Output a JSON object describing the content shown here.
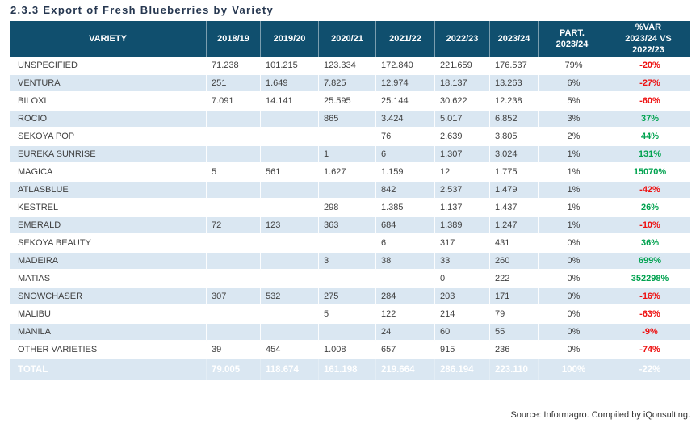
{
  "title": "2.3.3 Export of Fresh Blueberries by Variety",
  "source": "Source: Informagro. Compiled by iQonsulting.",
  "colors": {
    "header_bg": "#104f6e",
    "row_alt": "#dae7f2",
    "neg_red": "#ee1111",
    "pos_green": "#00a24f",
    "body_text": "#404040",
    "title_color": "#263750"
  },
  "chart_data": {
    "type": "table",
    "title": "Export of Fresh Blueberries by Variety",
    "columns": [
      "VARIETY",
      "2018/19",
      "2019/20",
      "2020/21",
      "2021/22",
      "2022/23",
      "2023/24",
      "PART.\n2023/24",
      "%VAR\n2023/24 VS\n2022/23"
    ],
    "rows": [
      [
        "UNSPECIFIED",
        "71.238",
        "101.215",
        "123.334",
        "172.840",
        "221.659",
        "176.537",
        "79%",
        "-20%"
      ],
      [
        "VENTURA",
        "251",
        "1.649",
        "7.825",
        "12.974",
        "18.137",
        "13.263",
        "6%",
        "-27%"
      ],
      [
        "BILOXI",
        "7.091",
        "14.141",
        "25.595",
        "25.144",
        "30.622",
        "12.238",
        "5%",
        "-60%"
      ],
      [
        "ROCIO",
        "",
        "",
        "865",
        "3.424",
        "5.017",
        "6.852",
        "3%",
        "37%"
      ],
      [
        "SEKOYA POP",
        "",
        "",
        "",
        "76",
        "2.639",
        "3.805",
        "2%",
        "44%"
      ],
      [
        "EUREKA SUNRISE",
        "",
        "",
        "1",
        "6",
        "1.307",
        "3.024",
        "1%",
        "131%"
      ],
      [
        "MAGICA",
        "5",
        "561",
        "1.627",
        "1.159",
        "12",
        "1.775",
        "1%",
        "15070%"
      ],
      [
        "ATLASBLUE",
        "",
        "",
        "",
        "842",
        "2.537",
        "1.479",
        "1%",
        "-42%"
      ],
      [
        "KESTREL",
        "",
        "",
        "298",
        "1.385",
        "1.137",
        "1.437",
        "1%",
        "26%"
      ],
      [
        "EMERALD",
        "72",
        "123",
        "363",
        "684",
        "1.389",
        "1.247",
        "1%",
        "-10%"
      ],
      [
        "SEKOYA BEAUTY",
        "",
        "",
        "",
        "6",
        "317",
        "431",
        "0%",
        "36%"
      ],
      [
        "MADEIRA",
        "",
        "",
        "3",
        "38",
        "33",
        "260",
        "0%",
        "699%"
      ],
      [
        "MATIAS",
        "",
        "",
        "",
        "",
        "0",
        "222",
        "0%",
        "352298%"
      ],
      [
        "SNOWCHASER",
        "307",
        "532",
        "275",
        "284",
        "203",
        "171",
        "0%",
        "-16%"
      ],
      [
        "MALIBU",
        "",
        "",
        "5",
        "122",
        "214",
        "79",
        "0%",
        "-63%"
      ],
      [
        "MANILA",
        "",
        "",
        "",
        "24",
        "60",
        "55",
        "0%",
        "-9%"
      ],
      [
        "OTHER VARIETIES",
        "39",
        "454",
        "1.008",
        "657",
        "915",
        "236",
        "0%",
        "-74%"
      ]
    ],
    "total": [
      "TOTAL",
      "79.005",
      "118.674",
      "161.198",
      "219.664",
      "286.194",
      "223.110",
      "100%",
      "-22%"
    ]
  }
}
